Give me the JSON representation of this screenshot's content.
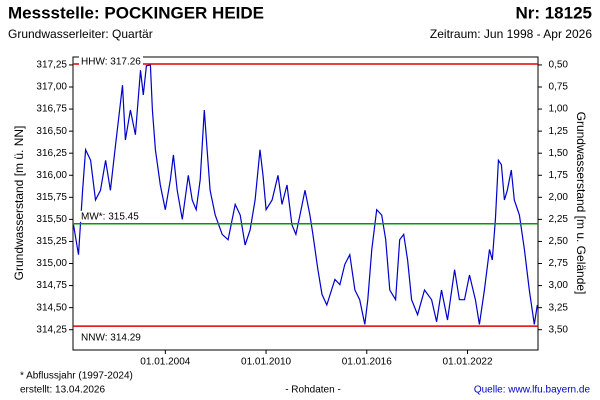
{
  "chart_data": {
    "type": "line",
    "title": "Messstelle: POCKINGER HEIDE",
    "number": "Nr: 18125",
    "subtitle": "Grundwasserleiter: Quartär",
    "period": "Zeitraum: Jun 1998 - Apr 2026",
    "y_label": "Grundwasserstand [m ü. NN]",
    "y2_label": "Grundwasserstand [m u. Gelände]",
    "footnote": "* Abflussjahr (1997-2024)",
    "created": "erstellt:  13.04.2026",
    "raw_note": "- Rohdaten -",
    "source": "Quelle: www.lfu.bayern.de",
    "xlim": [
      1998.5,
      2026.2
    ],
    "xticks": [
      {
        "value": 2004,
        "label": "01.01.2004"
      },
      {
        "value": 2010,
        "label": "01.01.2010"
      },
      {
        "value": 2016,
        "label": "01.01.2016"
      },
      {
        "value": 2022,
        "label": "01.01.2022"
      }
    ],
    "ylim": [
      314.02,
      317.34
    ],
    "yticks": [
      {
        "value": 314.25,
        "label": "314,25"
      },
      {
        "value": 314.5,
        "label": "314,50"
      },
      {
        "value": 314.75,
        "label": "314,75"
      },
      {
        "value": 315,
        "label": "315,00"
      },
      {
        "value": 315.25,
        "label": "315,25"
      },
      {
        "value": 315.5,
        "label": "315,50"
      },
      {
        "value": 315.75,
        "label": "315,75"
      },
      {
        "value": 316,
        "label": "316,00"
      },
      {
        "value": 316.25,
        "label": "316,25"
      },
      {
        "value": 316.5,
        "label": "316,50"
      },
      {
        "value": 316.75,
        "label": "316,75"
      },
      {
        "value": 317,
        "label": "317,00"
      },
      {
        "value": 317.25,
        "label": "317,25"
      }
    ],
    "y2lim": [
      3.73,
      0.41
    ],
    "y2ticks": [
      {
        "value": 0.5,
        "label": "0,50"
      },
      {
        "value": 0.75,
        "label": "0,75"
      },
      {
        "value": 1,
        "label": "1,00"
      },
      {
        "value": 1.25,
        "label": "1,25"
      },
      {
        "value": 1.5,
        "label": "1,50"
      },
      {
        "value": 1.75,
        "label": "1,75"
      },
      {
        "value": 2,
        "label": "2,00"
      },
      {
        "value": 2.25,
        "label": "2,25"
      },
      {
        "value": 2.5,
        "label": "2,50"
      },
      {
        "value": 2.75,
        "label": "2,75"
      },
      {
        "value": 3,
        "label": "3,00"
      },
      {
        "value": 3.25,
        "label": "3,25"
      },
      {
        "value": 3.5,
        "label": "3,50"
      }
    ],
    "ref_lines": [
      {
        "label": "HHW: 317.26",
        "value": 317.26,
        "color": "#e00000"
      },
      {
        "label": "MW*: 315.45",
        "value": 315.45,
        "color": "#009900"
      },
      {
        "label": "NNW: 314.29",
        "value": 314.29,
        "color": "#e00000"
      }
    ],
    "series": [
      {
        "color": "#0000cc",
        "x": [
          1998.53,
          1998.83,
          1999.07,
          1999.25,
          1999.55,
          1999.84,
          2000.14,
          2000.44,
          2000.73,
          2001.03,
          2001.21,
          2001.45,
          2001.62,
          2001.92,
          2002.22,
          2002.52,
          2002.69,
          2002.87,
          2003.11,
          2003.23,
          2003.41,
          2003.7,
          2004.0,
          2004.3,
          2004.48,
          2004.71,
          2005.01,
          2005.37,
          2005.6,
          2005.84,
          2006.08,
          2006.32,
          2006.49,
          2006.67,
          2006.97,
          2007.39,
          2007.74,
          2008.16,
          2008.46,
          2008.75,
          2009.05,
          2009.35,
          2009.64,
          2009.82,
          2010.0,
          2010.36,
          2010.71,
          2010.95,
          2011.25,
          2011.54,
          2011.78,
          2012.02,
          2012.32,
          2012.61,
          2012.79,
          2013.09,
          2013.33,
          2013.62,
          2014.1,
          2014.4,
          2014.69,
          2014.99,
          2015.29,
          2015.58,
          2015.88,
          2016.06,
          2016.3,
          2016.59,
          2016.89,
          2017.13,
          2017.37,
          2017.72,
          2017.96,
          2018.2,
          2018.43,
          2018.67,
          2019.03,
          2019.44,
          2019.86,
          2020.16,
          2020.45,
          2020.81,
          2021.23,
          2021.52,
          2021.82,
          2022.12,
          2022.47,
          2022.71,
          2023.01,
          2023.31,
          2023.48,
          2023.66,
          2023.84,
          2024.02,
          2024.2,
          2024.37,
          2024.61,
          2024.79,
          2025.09,
          2025.39,
          2025.68,
          2025.98,
          2026.16
        ],
        "values": [
          315.44,
          315.1,
          315.83,
          316.29,
          316.17,
          315.72,
          315.83,
          316.17,
          315.83,
          316.34,
          316.63,
          317.02,
          316.4,
          316.74,
          316.46,
          317.19,
          316.91,
          317.24,
          317.25,
          316.74,
          316.29,
          315.89,
          315.61,
          315.95,
          316.23,
          315.83,
          315.5,
          316.0,
          315.72,
          315.61,
          315.95,
          316.74,
          316.29,
          315.83,
          315.55,
          315.33,
          315.27,
          315.67,
          315.55,
          315.21,
          315.38,
          315.72,
          316.29,
          316.0,
          315.61,
          315.72,
          316.0,
          315.67,
          315.89,
          315.44,
          315.33,
          315.55,
          315.83,
          315.55,
          315.33,
          314.93,
          314.65,
          314.53,
          314.82,
          314.76,
          314.99,
          315.1,
          314.7,
          314.59,
          314.31,
          314.59,
          315.16,
          315.61,
          315.55,
          315.27,
          314.7,
          314.59,
          315.27,
          315.33,
          315.04,
          314.59,
          314.42,
          314.7,
          314.59,
          314.34,
          314.7,
          314.36,
          314.93,
          314.59,
          314.59,
          314.87,
          314.59,
          314.31,
          314.7,
          315.16,
          315.04,
          315.5,
          316.17,
          316.12,
          315.72,
          315.83,
          316.06,
          315.72,
          315.55,
          315.16,
          314.7,
          314.31,
          314.53
        ]
      }
    ]
  }
}
